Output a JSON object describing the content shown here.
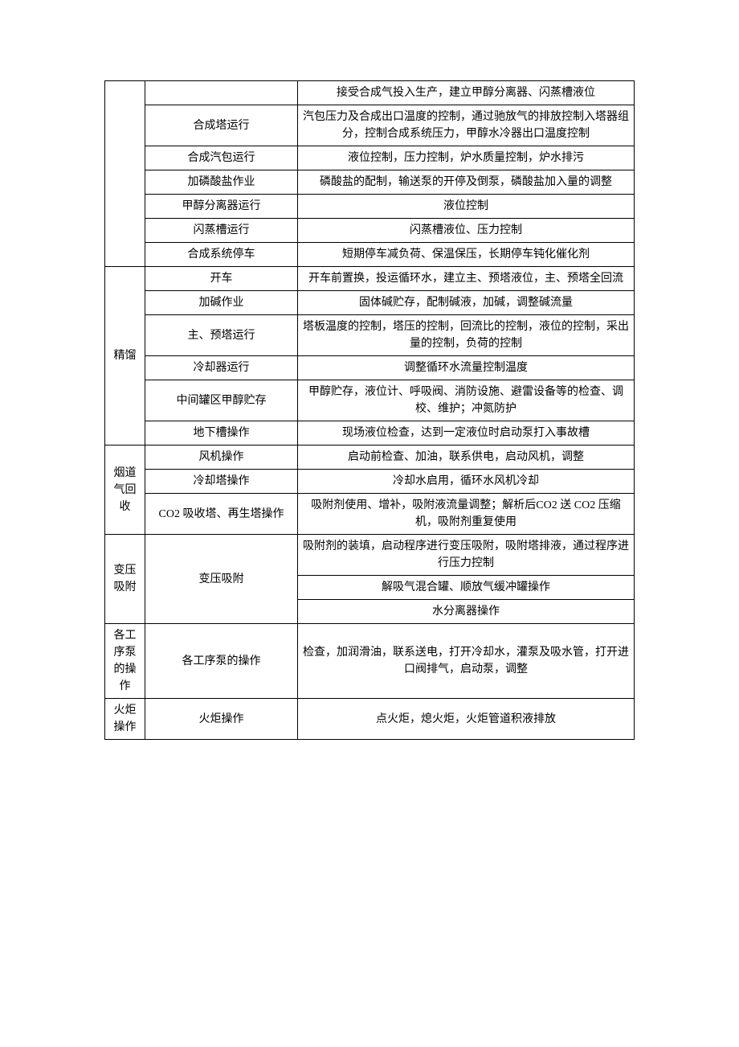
{
  "table": {
    "border_color": "#000000",
    "font_family": "SimSun",
    "font_size": 14,
    "rows": [
      {
        "c1": null,
        "c2": null,
        "c3": "接受合成气投入生产，建立甲醇分离器、闪蒸槽液位"
      },
      {
        "c1": null,
        "c2": "合成塔运行",
        "c3": "汽包压力及合成出口温度的控制，通过驰放气的排放控制入塔器组分，控制合成系统压力，甲醇水冷器出口温度控制"
      },
      {
        "c1": null,
        "c2": "合成汽包运行",
        "c3": "液位控制，压力控制，炉水质量控制，炉水排污"
      },
      {
        "c1": null,
        "c2": "加磷酸盐作业",
        "c3": "磷酸盐的配制，输送泵的开停及倒泵，磷酸盐加入量的调整"
      },
      {
        "c1": null,
        "c2": "甲醇分离器运行",
        "c3": "液位控制"
      },
      {
        "c1": null,
        "c2": "闪蒸槽运行",
        "c3": "闪蒸槽液位、压力控制"
      },
      {
        "c1": null,
        "c2": "合成系统停车",
        "c3": "短期停车减负荷、保温保压，长期停车钝化催化剂"
      },
      {
        "c1": "精馏",
        "c2": "开车",
        "c3": "开车前置换，投运循环水，建立主、预塔液位，主、预塔全回流"
      },
      {
        "c1": null,
        "c2": "加碱作业",
        "c3": "固体碱贮存，配制碱液，加碱，调整碱流量"
      },
      {
        "c1": null,
        "c2": "主、预塔运行",
        "c3": "塔板温度的控制，塔压的控制，回流比的控制，液位的控制，采出量的控制，负荷的控制"
      },
      {
        "c1": null,
        "c2": "冷却器运行",
        "c3": "调整循环水流量控制温度"
      },
      {
        "c1": null,
        "c2": "中间罐区甲醇贮存",
        "c3": "甲醇贮存，液位计、呼吸阀、消防设施、避雷设备等的检查、调校、维护；冲氮防护"
      },
      {
        "c1": null,
        "c2": "地下槽操作",
        "c3": "现场液位检查，达到一定液位时启动泵打入事故槽"
      },
      {
        "c1": "烟道气回收",
        "c2": "风机操作",
        "c3": "启动前检查、加油，联系供电，启动风机，调整"
      },
      {
        "c1": null,
        "c2": "冷却塔操作",
        "c3": "冷却水启用，循环水风机冷却"
      },
      {
        "c1": null,
        "c2": "CO2 吸收塔、再生塔操作",
        "c3": "吸附剂使用、增补，吸附液流量调整；解析后CO2 送 CO2 压缩机，吸附剂重复使用"
      },
      {
        "c1": "变压吸附",
        "c2": "变压吸附",
        "c3": "吸附剂的装填，启动程序进行变压吸附，吸附塔排液，通过程序进行压力控制"
      },
      {
        "c1": null,
        "c2": null,
        "c3": "解吸气混合罐、顺放气缓冲罐操作"
      },
      {
        "c1": null,
        "c2": null,
        "c3": "水分离器操作"
      },
      {
        "c1": "各工序泵的操作",
        "c2": "各工序泵的操作",
        "c3": "检查，加润滑油，联系送电，打开冷却水，灌泵及吸水管，打开进口阀排气，启动泵，调整"
      },
      {
        "c1": "火炬操作",
        "c2": "火炬操作",
        "c3": "点火炬，熄火炬，火炬管道积液排放"
      }
    ]
  }
}
